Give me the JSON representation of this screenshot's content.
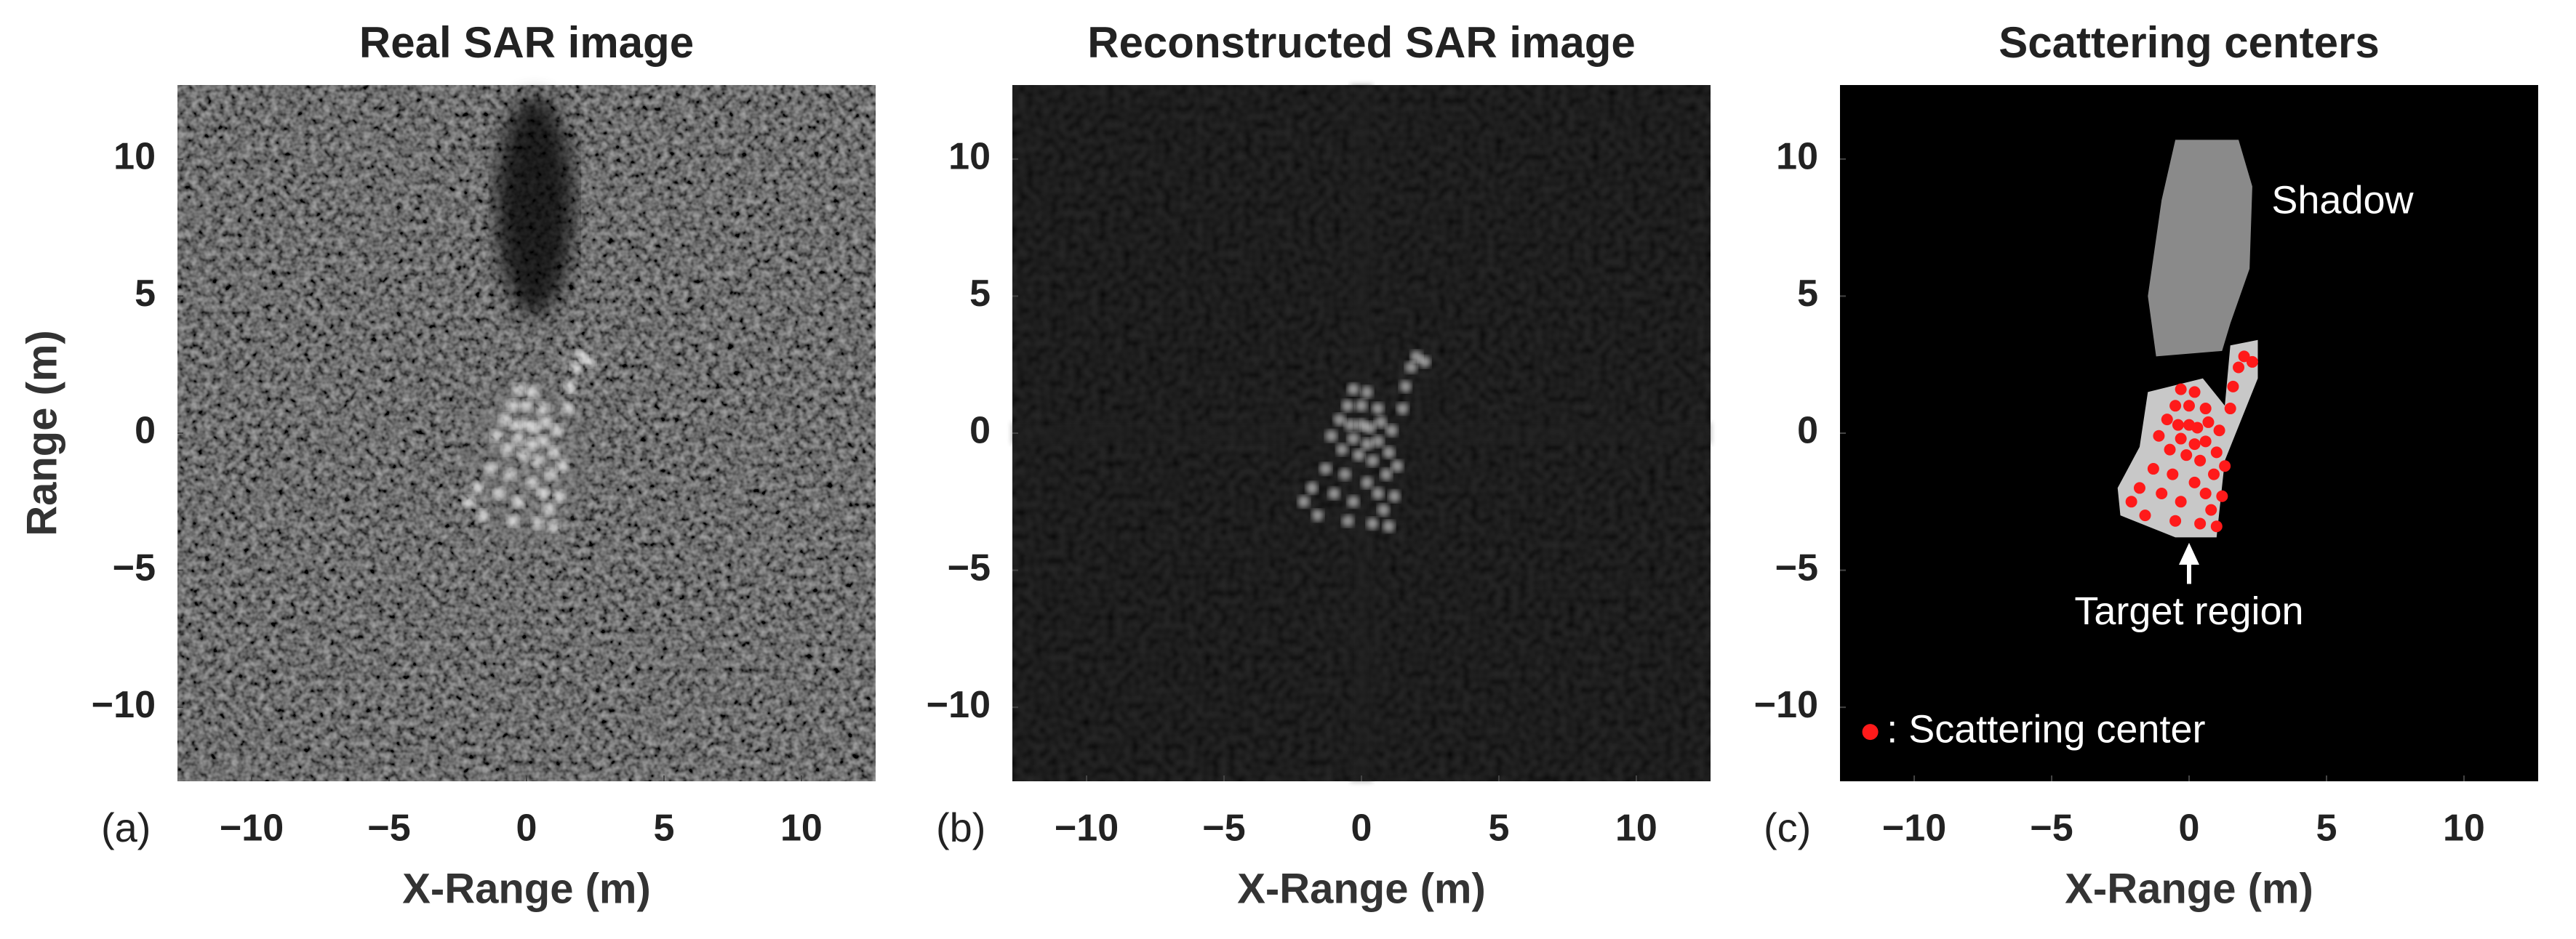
{
  "chart_data": [
    {
      "type": "image",
      "title": "Real SAR image",
      "xlabel": "X-Range (m)",
      "ylabel": "Range (m)",
      "panel_label": "(a)",
      "xlim": [
        -12.7,
        12.7
      ],
      "ylim": [
        -12.7,
        12.7
      ],
      "xticks": [
        {
          "value": -10,
          "label": "−10"
        },
        {
          "value": -5,
          "label": "−5"
        },
        0,
        5,
        10
      ],
      "yticks": [
        {
          "value": -10,
          "label": "−10"
        },
        {
          "value": -5,
          "label": "−5"
        },
        0,
        5,
        10
      ]
    },
    {
      "type": "image",
      "title": "Reconstructed SAR image",
      "xlabel": "X-Range (m)",
      "panel_label": "(b)",
      "xlim": [
        -12.7,
        12.7
      ],
      "ylim": [
        -12.7,
        12.7
      ],
      "xticks": [
        {
          "value": -10,
          "label": "−10"
        },
        {
          "value": -5,
          "label": "−5"
        },
        0,
        5,
        10
      ],
      "yticks": [
        {
          "value": -10,
          "label": "−10"
        },
        {
          "value": -5,
          "label": "−5"
        },
        0,
        5,
        10
      ]
    },
    {
      "type": "scatter",
      "title": "Scattering centers",
      "xlabel": "X-Range (m)",
      "panel_label": "(c)",
      "xlim": [
        -12.7,
        12.7
      ],
      "ylim": [
        -12.7,
        12.7
      ],
      "xticks": [
        {
          "value": -10,
          "label": "−10"
        },
        {
          "value": -5,
          "label": "−5"
        },
        0,
        5,
        10
      ],
      "yticks": [
        {
          "value": -10,
          "label": "−10"
        },
        {
          "value": -5,
          "label": "−5"
        },
        0,
        5,
        10
      ],
      "annotations": [
        "Shadow",
        "Target region"
      ],
      "series": [
        {
          "name": ": Scattering center",
          "color": "#ff1a1a",
          "x": [
            -0.3,
            0.2,
            -0.5,
            0,
            0.6,
            -0.8,
            -0.4,
            0,
            0.3,
            0.7,
            1.1,
            -1.1,
            -0.3,
            0.2,
            0.6,
            1,
            -0.7,
            -0.1,
            0.4,
            1.3,
            -1.3,
            -0.6,
            0.9,
            0.2,
            -1.8,
            -1,
            0.6,
            1.2,
            -2.1,
            -0.3,
            0.8,
            -1.6,
            -0.5,
            0.4,
            1,
            2.0,
            2.3,
            1.8,
            1.6,
            1.5
          ],
          "values": [
            1.6,
            1.5,
            1.0,
            1,
            0.9,
            0.5,
            0.3,
            0.3,
            0.2,
            0.4,
            0.1,
            -0.1,
            -0.2,
            -0.4,
            -0.3,
            -0.7,
            -0.6,
            -0.8,
            -1,
            -1.2,
            -1.3,
            -1.5,
            -1.5,
            -1.8,
            -2,
            -2.2,
            -2.2,
            -2.3,
            -2.5,
            -2.5,
            -2.8,
            -3,
            -3.2,
            -3.3,
            -3.4,
            2.8,
            2.6,
            2.4,
            1.7,
            0.9
          ]
        }
      ]
    }
  ]
}
